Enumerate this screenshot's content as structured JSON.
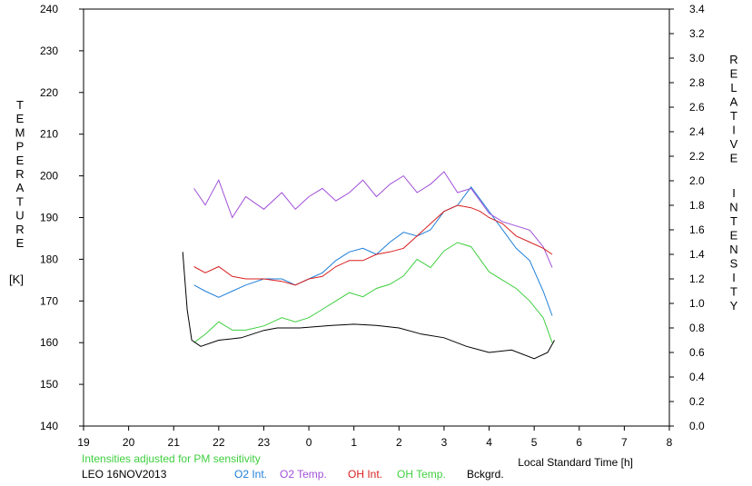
{
  "chart_data": {
    "type": "line",
    "left_axis": {
      "label_letters": [
        "T",
        "E",
        "M",
        "P",
        "E",
        "R",
        "A",
        "T",
        "U",
        "R",
        "E"
      ],
      "unit": "[K]",
      "ticks": [
        "140",
        "150",
        "160",
        "170",
        "180",
        "190",
        "200",
        "210",
        "220",
        "230",
        "240"
      ],
      "range": [
        140,
        240
      ]
    },
    "right_axis": {
      "label_letters_1": [
        "R",
        "E",
        "L",
        "A",
        "T",
        "I",
        "V",
        "E"
      ],
      "label_letters_2": [
        "I",
        "N",
        "T",
        "E",
        "N",
        "S",
        "I",
        "T",
        "Y"
      ],
      "ticks": [
        "0.0",
        "0.2",
        "0.4",
        "0.6",
        "0.8",
        "1.0",
        "1.2",
        "1.4",
        "1.6",
        "1.8",
        "2.0",
        "2.2",
        "2.4",
        "2.6",
        "2.8",
        "3.0",
        "3.2",
        "3.4"
      ],
      "range": [
        0,
        3.4
      ]
    },
    "x_axis": {
      "label": "Local Standard Time [h]",
      "ticks": [
        "19",
        "20",
        "21",
        "22",
        "23",
        "0",
        "1",
        "2",
        "3",
        "4",
        "5",
        "6",
        "7",
        "8"
      ],
      "range": [
        19,
        32
      ]
    },
    "note": "Intensities adjusted for PM sensitivity",
    "station": "LEO 16NOV2013",
    "series": [
      {
        "name": "O2 Int.",
        "color": "#1f7fd8",
        "axis": "right",
        "x": [
          21.45,
          21.7,
          22.0,
          22.3,
          22.6,
          23.0,
          23.4,
          23.7,
          24.0,
          24.3,
          24.6,
          24.9,
          25.2,
          25.5,
          25.8,
          26.1,
          26.4,
          26.7,
          27.0,
          27.3,
          27.6,
          27.8,
          28.0,
          28.3,
          28.6,
          28.9,
          29.2,
          29.4
        ],
        "values": [
          1.15,
          1.1,
          1.05,
          1.1,
          1.15,
          1.2,
          1.2,
          1.15,
          1.2,
          1.25,
          1.35,
          1.42,
          1.45,
          1.4,
          1.5,
          1.58,
          1.55,
          1.6,
          1.75,
          1.8,
          1.95,
          1.85,
          1.75,
          1.6,
          1.45,
          1.35,
          1.1,
          0.9
        ]
      },
      {
        "name": "O2 Temp.",
        "color": "#a04fd8",
        "axis": "left",
        "x": [
          21.45,
          21.7,
          22.0,
          22.3,
          22.6,
          23.0,
          23.4,
          23.7,
          24.0,
          24.3,
          24.6,
          24.9,
          25.2,
          25.5,
          25.8,
          26.1,
          26.4,
          26.7,
          27.0,
          27.3,
          27.6,
          27.8,
          28.0,
          28.3,
          28.6,
          28.9,
          29.2,
          29.4
        ],
        "values": [
          197,
          193,
          199,
          190,
          195,
          192,
          196,
          192,
          195,
          197,
          194,
          196,
          199,
          195,
          198,
          200,
          196,
          198,
          201,
          196,
          197,
          194,
          191,
          189,
          188,
          187,
          183,
          178
        ]
      },
      {
        "name": "OH Int.",
        "color": "#d81f1f",
        "axis": "right",
        "x": [
          21.45,
          21.7,
          22.0,
          22.3,
          22.6,
          23.0,
          23.4,
          23.7,
          24.0,
          24.3,
          24.6,
          24.9,
          25.2,
          25.5,
          25.8,
          26.1,
          26.4,
          26.7,
          27.0,
          27.3,
          27.6,
          27.8,
          28.0,
          28.3,
          28.6,
          28.9,
          29.2,
          29.4
        ],
        "values": [
          1.3,
          1.25,
          1.3,
          1.22,
          1.2,
          1.2,
          1.18,
          1.15,
          1.2,
          1.22,
          1.3,
          1.35,
          1.35,
          1.4,
          1.42,
          1.45,
          1.55,
          1.65,
          1.75,
          1.8,
          1.78,
          1.75,
          1.7,
          1.65,
          1.55,
          1.5,
          1.45,
          1.4
        ]
      },
      {
        "name": "OH Temp.",
        "color": "#3fcf3f",
        "axis": "left",
        "x": [
          21.45,
          21.7,
          22.0,
          22.3,
          22.6,
          23.0,
          23.4,
          23.7,
          24.0,
          24.3,
          24.6,
          24.9,
          25.2,
          25.5,
          25.8,
          26.1,
          26.4,
          26.7,
          27.0,
          27.3,
          27.6,
          27.8,
          28.0,
          28.3,
          28.6,
          28.9,
          29.2,
          29.4
        ],
        "values": [
          160,
          162,
          165,
          163,
          163,
          164,
          166,
          165,
          166,
          168,
          170,
          172,
          171,
          173,
          174,
          176,
          180,
          178,
          182,
          184,
          183,
          180,
          177,
          175,
          173,
          170,
          166,
          160
        ]
      },
      {
        "name": "Bckgrd.",
        "color": "#000000",
        "axis": "right",
        "x": [
          21.2,
          21.3,
          21.4,
          21.6,
          22.0,
          22.5,
          23.0,
          23.3,
          23.8,
          24.5,
          25.0,
          25.5,
          26.0,
          26.5,
          27.0,
          27.5,
          28.0,
          28.5,
          29.0,
          29.3,
          29.45
        ],
        "values": [
          1.42,
          0.95,
          0.7,
          0.65,
          0.7,
          0.72,
          0.78,
          0.8,
          0.8,
          0.82,
          0.83,
          0.82,
          0.8,
          0.75,
          0.72,
          0.65,
          0.6,
          0.62,
          0.55,
          0.6,
          0.7
        ]
      }
    ]
  }
}
